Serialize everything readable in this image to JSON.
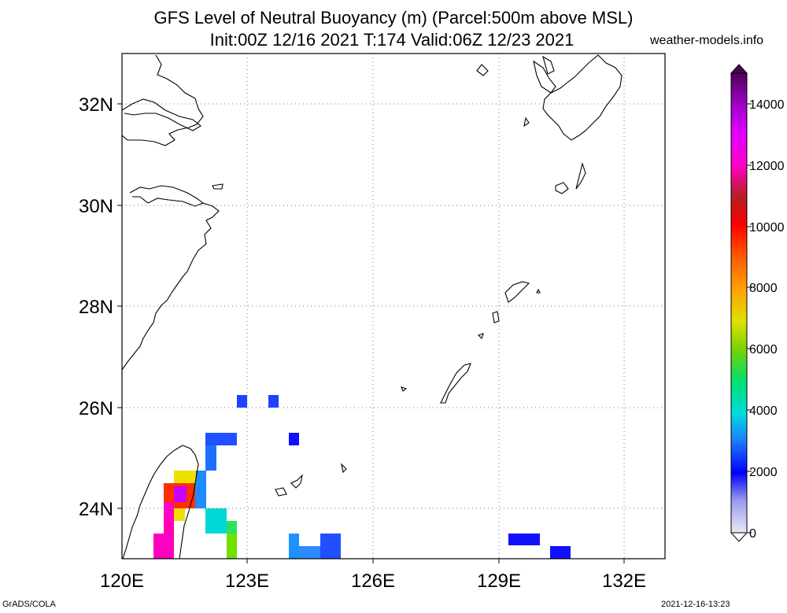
{
  "title_line1": "GFS Level of Neutral Buoyancy (m) (Parcel:500m above MSL)",
  "title_line2": "Init:00Z 12/16 2021 T:174 Valid:06Z 12/23 2021",
  "site": "weather-models.info",
  "footer_left": "GrADS/COLA",
  "footer_right": "2021-12-16-13:23",
  "map": {
    "lon_range": [
      120,
      133
    ],
    "lat_range": [
      23,
      33
    ],
    "lon_ticks": [
      "120E",
      "123E",
      "126E",
      "129E",
      "132E"
    ],
    "lat_ticks": [
      "24N",
      "26N",
      "28N",
      "30N",
      "32N"
    ],
    "gridlines": "dotted"
  },
  "colorbar": {
    "labels": [
      "0",
      "2000",
      "4000",
      "6000",
      "8000",
      "10000",
      "12000",
      "14000"
    ],
    "min": 0,
    "max": 15000
  }
}
